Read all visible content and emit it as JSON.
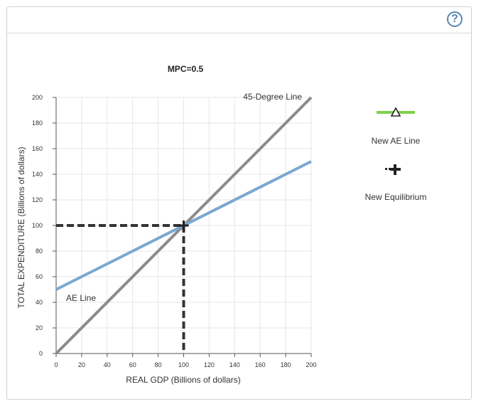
{
  "help": {
    "label": "?"
  },
  "legend": {
    "new_ae_label": "New AE Line",
    "new_eq_label": "New Equilibrium",
    "colors": {
      "new_ae": "#7fd050",
      "icon": "#222222"
    }
  },
  "chart_data": {
    "type": "line",
    "title": "MPC=0.5",
    "xlabel": "REAL GDP (Billions of dollars)",
    "ylabel": "TOTAL EXPENDITURE (Billions of dollars)",
    "xlim": [
      0,
      200
    ],
    "ylim": [
      0,
      200
    ],
    "xticks": [
      0,
      20,
      40,
      60,
      80,
      100,
      120,
      140,
      160,
      180,
      200
    ],
    "yticks": [
      0,
      20,
      40,
      60,
      80,
      100,
      120,
      140,
      160,
      180,
      200
    ],
    "grid": true,
    "series": [
      {
        "name": "45-Degree Line",
        "x": [
          0,
          200
        ],
        "y": [
          0,
          200
        ],
        "color": "#8c8c8c"
      },
      {
        "name": "AE Line",
        "x": [
          0,
          200
        ],
        "y": [
          50,
          150
        ],
        "color": "#7ba7d4"
      }
    ],
    "equilibrium": {
      "x": 100,
      "y": 100
    },
    "colors": {
      "grid": "#e6e6e6",
      "axis": "#555555",
      "guide": "#333333"
    }
  }
}
